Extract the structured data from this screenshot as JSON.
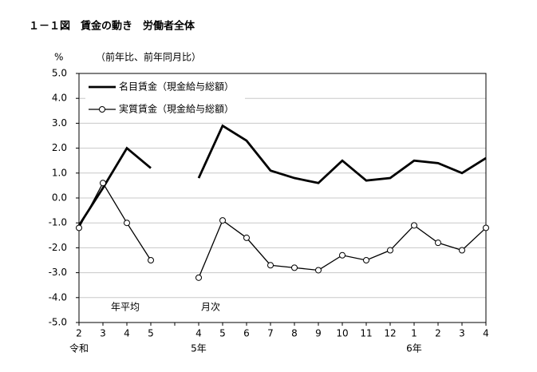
{
  "chart_data": {
    "type": "line",
    "title": "１－１図　賃金の動き　労働者全体",
    "y_unit": "%",
    "subtitle": "（前年比、前年同月比）",
    "categories": [
      "2",
      "3",
      "4",
      "5",
      null,
      "4",
      "5",
      "6",
      "7",
      "8",
      "9",
      "10",
      "11",
      "12",
      "1",
      "2",
      "3",
      "4"
    ],
    "era_labels": [
      "令和",
      "5年",
      "6年"
    ],
    "annotations": [
      "年平均",
      "月次"
    ],
    "series": [
      {
        "name": "名目賃金（現金給与総額）",
        "color": "#000000",
        "marker": false,
        "values": [
          -1.1,
          0.4,
          2.0,
          1.2,
          null,
          0.8,
          2.9,
          2.3,
          1.1,
          0.8,
          0.6,
          1.5,
          0.7,
          0.8,
          1.5,
          1.4,
          1.0,
          1.6
        ]
      },
      {
        "name": "実質賃金（現金給与総額）",
        "color": "#000000",
        "marker": true,
        "values": [
          -1.2,
          0.6,
          -1.0,
          -2.5,
          null,
          -3.2,
          -0.9,
          -1.6,
          -2.7,
          -2.8,
          -2.9,
          -2.3,
          -2.5,
          -2.1,
          -1.1,
          -1.8,
          -2.1,
          -1.2
        ]
      }
    ],
    "ylim": [
      -5,
      5
    ],
    "yticks": [
      {
        "value": 5,
        "label": "5.0"
      },
      {
        "value": 4,
        "label": "4.0"
      },
      {
        "value": 3,
        "label": "3.0"
      },
      {
        "value": 2,
        "label": "2.0"
      },
      {
        "value": 1,
        "label": "1.0"
      },
      {
        "value": 0,
        "label": "0.0"
      },
      {
        "value": -1,
        "label": "-1.0"
      },
      {
        "value": -2,
        "label": "-2.0"
      },
      {
        "value": -3,
        "label": "-3.0"
      },
      {
        "value": -4,
        "label": "-4.0"
      },
      {
        "value": -5,
        "label": "-5.0"
      }
    ],
    "grid": true,
    "legend": "upper-left"
  }
}
